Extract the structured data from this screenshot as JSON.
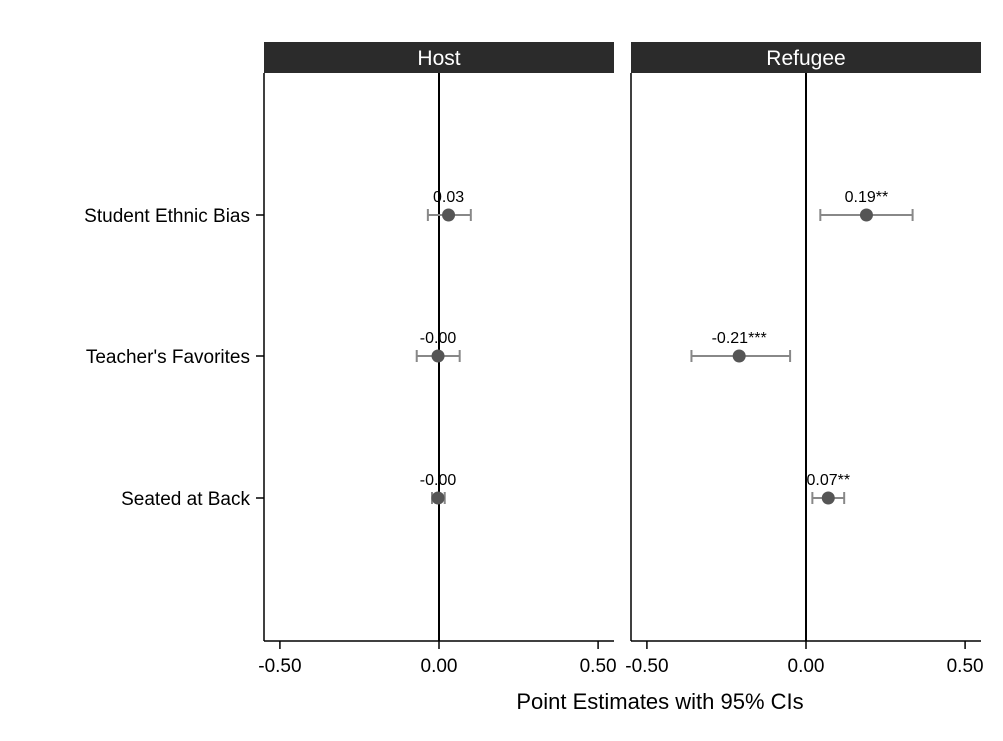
{
  "chart_data": {
    "type": "scatter",
    "xlabel": "Point Estimates with 95% CIs",
    "xlim": [
      -0.55,
      0.55
    ],
    "xticks": [
      -0.5,
      0.0,
      0.5
    ],
    "xtick_labels": [
      "-0.50",
      "0.00",
      "0.50"
    ],
    "categories": [
      "Student Ethnic Bias",
      "Teacher's Favorites",
      "Seated at Back"
    ],
    "reference_line": 0,
    "grid": false,
    "colors": {
      "header": "#2b2b2b",
      "header_text": "#ffffff",
      "marker": "#555555",
      "ci": "#888888",
      "axis": "#000000"
    },
    "panels": [
      {
        "title": "Host",
        "points": [
          {
            "category": "Student Ethnic Bias",
            "estimate": 0.03,
            "ci_low": -0.035,
            "ci_high": 0.1,
            "label": "0.03"
          },
          {
            "category": "Teacher's Favorites",
            "estimate": -0.003,
            "ci_low": -0.07,
            "ci_high": 0.065,
            "label": "-0.00"
          },
          {
            "category": "Seated at Back",
            "estimate": -0.003,
            "ci_low": -0.022,
            "ci_high": 0.018,
            "label": "-0.00"
          }
        ]
      },
      {
        "title": "Refugee",
        "points": [
          {
            "category": "Student Ethnic Bias",
            "estimate": 0.19,
            "ci_low": 0.045,
            "ci_high": 0.335,
            "label": "0.19**"
          },
          {
            "category": "Teacher's Favorites",
            "estimate": -0.21,
            "ci_low": -0.36,
            "ci_high": -0.05,
            "label": "-0.21***"
          },
          {
            "category": "Seated at Back",
            "estimate": 0.07,
            "ci_low": 0.02,
            "ci_high": 0.12,
            "label": "0.07**"
          }
        ]
      }
    ]
  }
}
